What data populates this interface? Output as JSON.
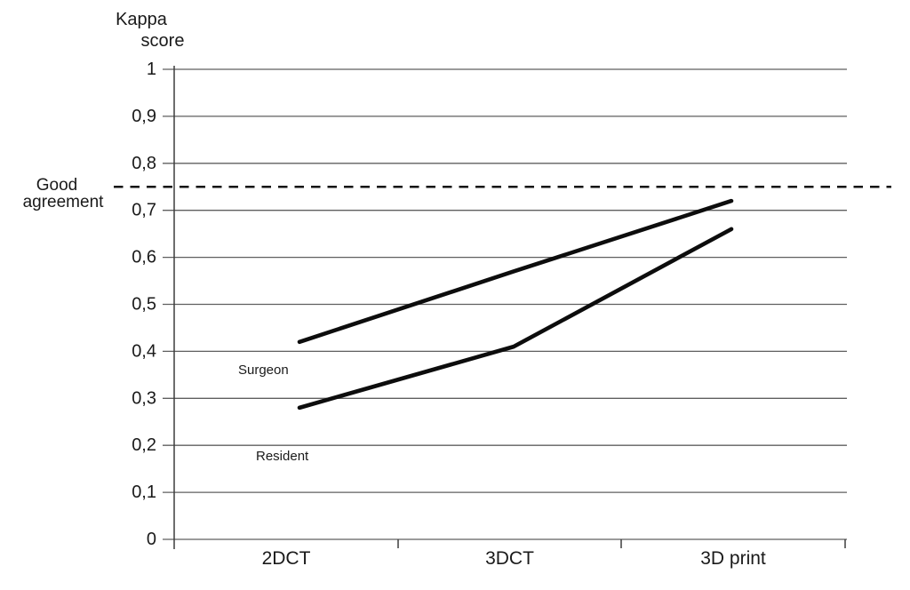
{
  "figure": {
    "axis_title_line1": "Kappa",
    "axis_title_line2": "score",
    "annotation_line1": "Good",
    "annotation_line2": "agreement",
    "surgeon_label": "Surgeon",
    "resident_label": "Resident"
  },
  "chart_data": {
    "type": "line",
    "title": "Kappa score",
    "categories": [
      "2DCT",
      "3DCT",
      "3D print"
    ],
    "series": [
      {
        "name": "Surgeon",
        "values": [
          0.42,
          0.57,
          0.72
        ]
      },
      {
        "name": "Resident",
        "values": [
          0.28,
          0.41,
          0.66
        ]
      }
    ],
    "xlabel": "",
    "ylabel": "Kappa score",
    "ylim": [
      0,
      1
    ],
    "ytick_step": 0.1,
    "ytick_labels": [
      "0",
      "0,1",
      "0,2",
      "0,3",
      "0,4",
      "0,5",
      "0,6",
      "0,7",
      "0,8",
      "0,9",
      "1"
    ],
    "decimal_separator": ",",
    "reference_line": {
      "label": "Good agreement",
      "value": 0.75,
      "style": "dashed"
    },
    "grid": true,
    "legend_position": "inline-labels-near-first-points",
    "colors": {
      "series_line": "#0d0d0d",
      "grid_line": "#5f5f5f",
      "axis_line": "#3d3d3d",
      "reference_line": "#111111",
      "text": "#1a1a1a",
      "background": "#ffffff"
    }
  }
}
